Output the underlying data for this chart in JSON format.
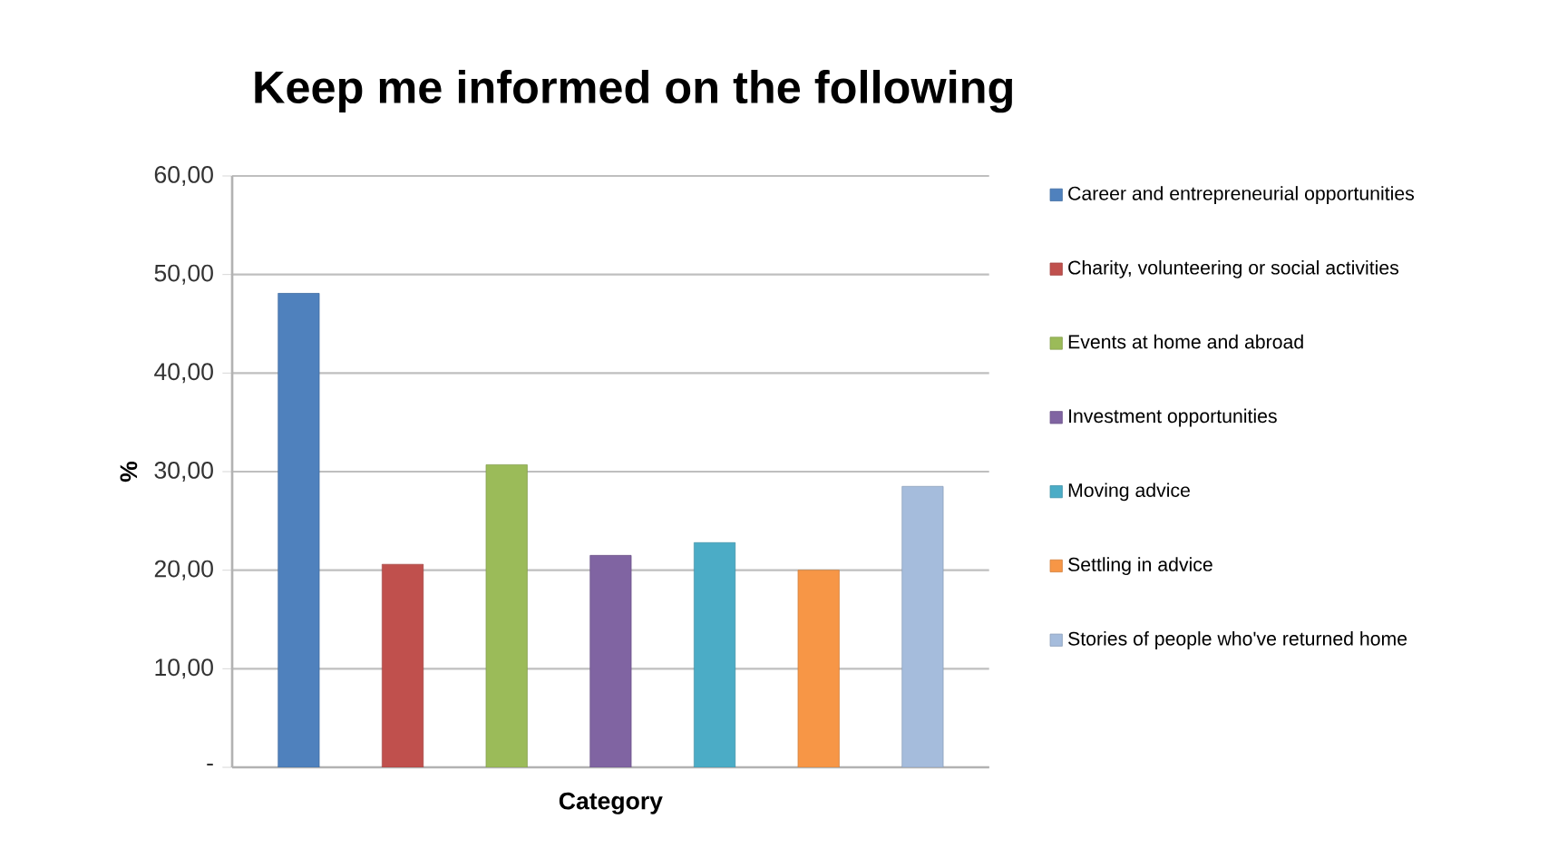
{
  "chart_data": {
    "type": "bar",
    "title": "Keep me informed on the following",
    "xlabel": "Category",
    "ylabel": "%",
    "categories": [
      null
    ],
    "series": [
      {
        "name": "Career and entrepreneurial opportunities",
        "color": "#4f81bd",
        "values": [
          48.1
        ]
      },
      {
        "name": "Charity, volunteering or social activities",
        "color": "#c0504d",
        "values": [
          20.6
        ]
      },
      {
        "name": "Events at home and abroad",
        "color": "#9bbb59",
        "values": [
          30.7
        ]
      },
      {
        "name": "Investment opportunities",
        "color": "#8064a2",
        "values": [
          21.5
        ]
      },
      {
        "name": "Moving advice",
        "color": "#4bacc6",
        "values": [
          22.8
        ]
      },
      {
        "name": "Settling in advice",
        "color": "#f79646",
        "values": [
          20.0
        ]
      },
      {
        "name": "Stories of people who've returned home",
        "color": "#a5bcdc",
        "values": [
          28.5
        ]
      }
    ],
    "ylim": [
      0,
      60
    ],
    "yticks": [
      {
        "value": 0,
        "label": "-"
      },
      {
        "value": 10,
        "label": "10,00"
      },
      {
        "value": 20,
        "label": "20,00"
      },
      {
        "value": 30,
        "label": "30,00"
      },
      {
        "value": 40,
        "label": "40,00"
      },
      {
        "value": 50,
        "label": "50,00"
      },
      {
        "value": 60,
        "label": "60,00"
      }
    ],
    "grid": "y",
    "legend": "right"
  }
}
